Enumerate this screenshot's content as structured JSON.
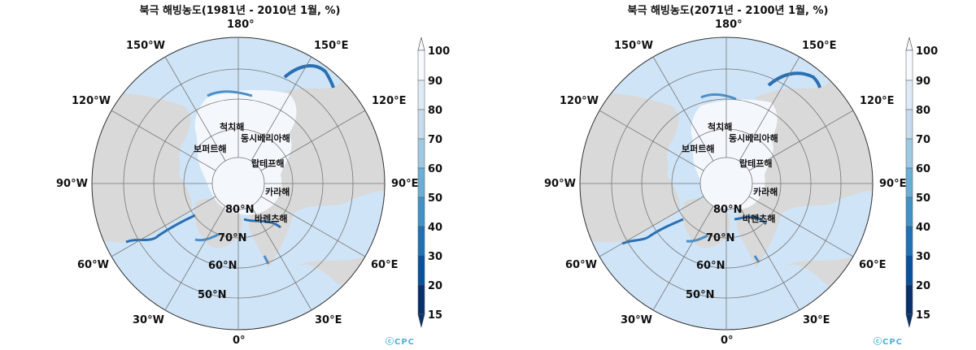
{
  "maps": [
    {
      "title": "북극 해빙농도(1981년 - 2010년 1월, %)",
      "logo": "ⓒCPC",
      "ice_scale": 1.0
    },
    {
      "title": "북극 해빙농도(2071년 - 2100년 1월, %)",
      "logo": "ⓒCPC",
      "ice_scale": 0.88
    }
  ],
  "longitude_labels": [
    "180°",
    "150°E",
    "120°E",
    "90°E",
    "60°E",
    "30°E",
    "0°",
    "30°W",
    "60°W",
    "90°W",
    "120°W",
    "150°W"
  ],
  "latitude_labels": [
    "80°N",
    "70°N",
    "60°N",
    "50°N"
  ],
  "sea_labels": [
    "척치해",
    "동시베리아해",
    "보퍼트해",
    "랍테프해",
    "카라해",
    "바렌츠해"
  ],
  "colorbar": {
    "ticks": [
      "100",
      "90",
      "80",
      "70",
      "60",
      "50",
      "40",
      "30",
      "20",
      "15"
    ],
    "colors": [
      "#f7fbff",
      "#deebf7",
      "#c6dbef",
      "#9ecae1",
      "#6baed6",
      "#4292c6",
      "#2171b5",
      "#08519c",
      "#08306b"
    ]
  },
  "colors": {
    "ocean": "#cfe4f7",
    "land": "#d9d9d9",
    "ice": "#f4f8fd",
    "ice_edge": "#2b6fb2",
    "grid": "#777777"
  }
}
